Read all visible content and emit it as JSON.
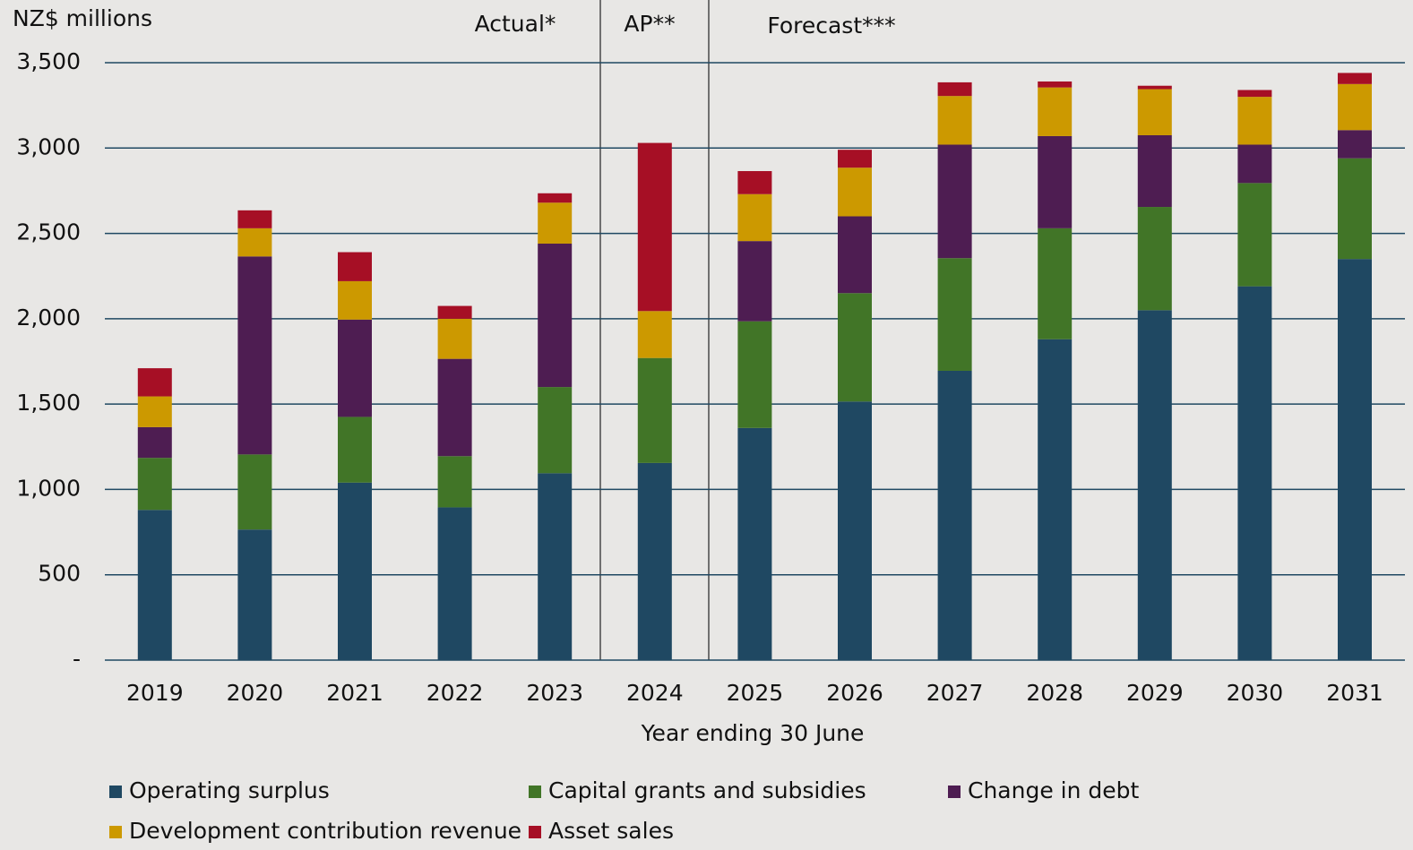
{
  "chart_data": {
    "type": "stacked_bar",
    "y_axis_title": "NZ$ millions",
    "x_axis_title": "Year ending 30 June",
    "annotations": [
      "Actual*",
      "AP**",
      "Forecast***"
    ],
    "categories": [
      "2019",
      "2020",
      "2021",
      "2022",
      "2023",
      "2024",
      "2025",
      "2026",
      "2027",
      "2028",
      "2029",
      "2030",
      "2031"
    ],
    "series": [
      {
        "name": "Operating surplus",
        "color": "#1f4862",
        "values": [
          880,
          765,
          1040,
          895,
          1095,
          1155,
          1360,
          1515,
          1695,
          1880,
          2050,
          2190,
          2350
        ]
      },
      {
        "name": "Capital grants and subsidies",
        "color": "#417527",
        "values": [
          305,
          440,
          385,
          300,
          505,
          615,
          625,
          635,
          660,
          650,
          605,
          605,
          590
        ]
      },
      {
        "name": "Change in debt",
        "color": "#4e1d52",
        "values": [
          180,
          1160,
          570,
          570,
          840,
          0,
          470,
          450,
          665,
          540,
          420,
          225,
          165
        ]
      },
      {
        "name": "Development contribution revenue",
        "color": "#cc9900",
        "values": [
          180,
          165,
          225,
          235,
          240,
          275,
          275,
          285,
          285,
          285,
          270,
          280,
          270
        ]
      },
      {
        "name": "Asset sales",
        "color": "#a60f25",
        "values": [
          165,
          105,
          170,
          75,
          55,
          985,
          135,
          105,
          80,
          35,
          20,
          40,
          65
        ]
      }
    ],
    "ylim": [
      0,
      3500
    ],
    "yticks": [
      {
        "value": 0,
        "label": "-"
      },
      500,
      {
        "value": 1000,
        "label": "1,000"
      },
      {
        "value": 1500,
        "label": "1,500"
      },
      {
        "value": 2000,
        "label": "2,000"
      },
      {
        "value": 2500,
        "label": "2,500"
      },
      {
        "value": 3000,
        "label": "3,000"
      },
      {
        "value": 3500,
        "label": "3,500"
      }
    ],
    "grid": true
  }
}
